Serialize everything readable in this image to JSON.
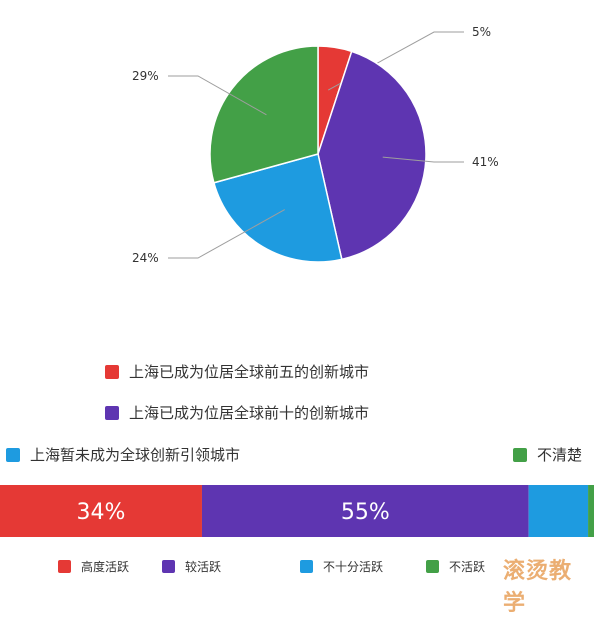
{
  "chart_data": [
    {
      "type": "pie",
      "slices": [
        {
          "label": "上海已成为位居全球前五的创新城市",
          "value": 5,
          "value_text": "5%",
          "color": "#e53935"
        },
        {
          "label": "上海已成为位居全球前十的创新城市",
          "value": 41,
          "value_text": "41%",
          "color": "#5e35b1"
        },
        {
          "label": "上海暂未成为全球创新引领城市",
          "value": 24,
          "value_text": "24%",
          "color": "#1e9be0"
        },
        {
          "label": "不清楚",
          "value": 29,
          "value_text": "29%",
          "color": "#43a047"
        }
      ],
      "legend_placement": "bottom"
    },
    {
      "type": "bar",
      "orientation": "horizontal-stacked",
      "series": [
        {
          "name": "高度活跃",
          "value": 34,
          "value_text": "34%",
          "color": "#e53935"
        },
        {
          "name": "较活跃",
          "value": 55,
          "value_text": "55%",
          "color": "#5e35b1"
        },
        {
          "name": "不十分活跃",
          "value": 10,
          "value_text": "",
          "color": "#1e9be0"
        },
        {
          "name": "不活跃",
          "value": 1,
          "value_text": "",
          "color": "#43a047"
        }
      ],
      "legend_placement": "bottom"
    }
  ],
  "watermark": "滚烫教学"
}
